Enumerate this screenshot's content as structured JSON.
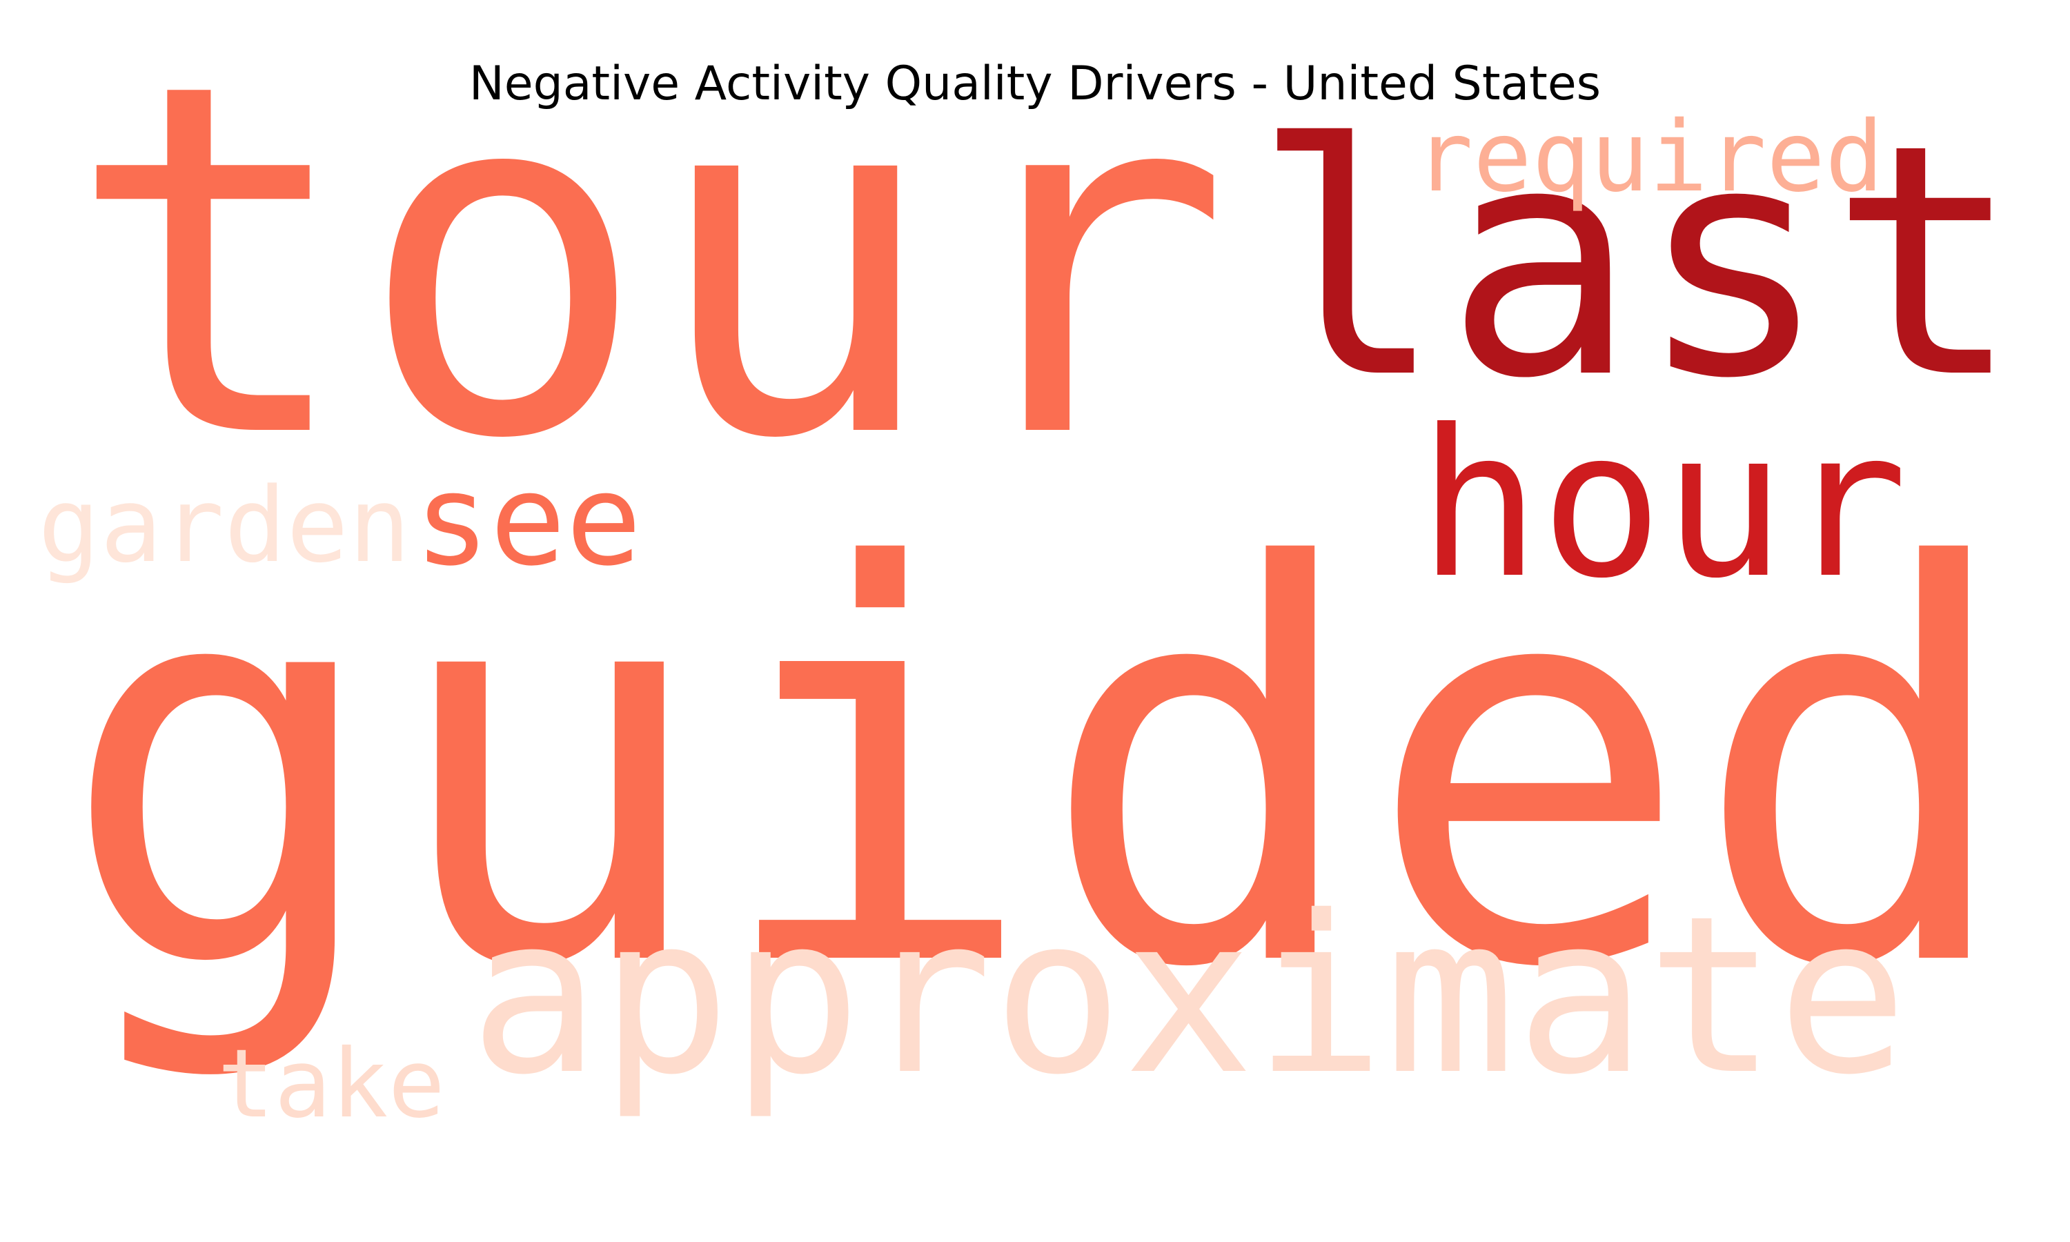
{
  "chart_data": {
    "type": "wordcloud",
    "title": "Negative Activity Quality Drivers - United States",
    "colormap": "Reds",
    "words": [
      {
        "text": "guided",
        "weight": 1.0,
        "color": "#fb6e51"
      },
      {
        "text": "tour",
        "weight": 0.92,
        "color": "#fb6e51"
      },
      {
        "text": "last",
        "weight": 0.6,
        "color": "#b1141a"
      },
      {
        "text": "approximate",
        "weight": 0.52,
        "color": "#fedccd"
      },
      {
        "text": "hour",
        "weight": 0.45,
        "color": "#cf1c1f"
      },
      {
        "text": "see",
        "weight": 0.24,
        "color": "#fb6e51"
      },
      {
        "text": "required",
        "weight": 0.22,
        "color": "#fdaf95"
      },
      {
        "text": "garden",
        "weight": 0.2,
        "color": "#fee5d9"
      },
      {
        "text": "take",
        "weight": 0.19,
        "color": "#fedccd"
      }
    ]
  }
}
